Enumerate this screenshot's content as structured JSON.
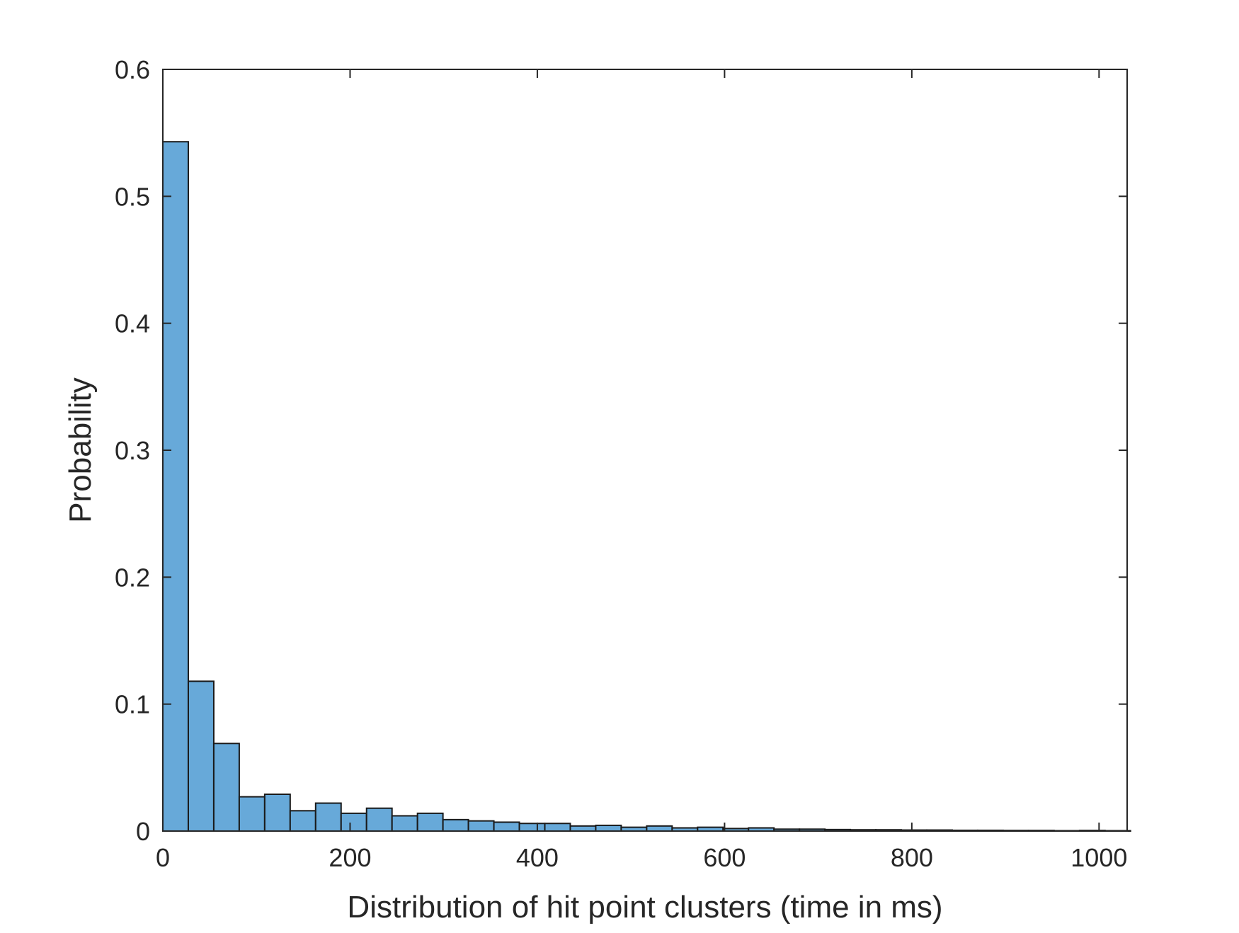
{
  "chart_data": {
    "type": "bar",
    "title": "",
    "xlabel": "Distribution of hit point clusters (time in ms)",
    "ylabel": "Probability",
    "xlim": [
      0,
      1030
    ],
    "ylim": [
      0,
      0.6
    ],
    "xticks": [
      0,
      200,
      400,
      600,
      800,
      1000
    ],
    "yticks": [
      0,
      0.1,
      0.2,
      0.3,
      0.4,
      0.5,
      0.6
    ],
    "xtick_labels": [
      "0",
      "200",
      "400",
      "600",
      "800",
      "1000"
    ],
    "ytick_labels": [
      "0",
      "0.1",
      "0.2",
      "0.3",
      "0.4",
      "0.5",
      "0.6"
    ],
    "bin_width": 27.2,
    "bin_start": 0,
    "values": [
      0.543,
      0.118,
      0.069,
      0.027,
      0.029,
      0.016,
      0.022,
      0.014,
      0.018,
      0.012,
      0.014,
      0.009,
      0.008,
      0.007,
      0.006,
      0.006,
      0.004,
      0.0045,
      0.003,
      0.004,
      0.0025,
      0.003,
      0.002,
      0.0025,
      0.0015,
      0.0015,
      0.0012,
      0.001,
      0.001,
      0.0008,
      0.0008,
      0.0006,
      0.0006,
      0.0005,
      0.0005,
      0.0003,
      0.0005,
      0.0003
    ],
    "grid": false,
    "box": true,
    "colors": {
      "bar_fill": "#67A9D9",
      "bar_edge": "#1a1a1a",
      "axis": "#262626"
    }
  }
}
